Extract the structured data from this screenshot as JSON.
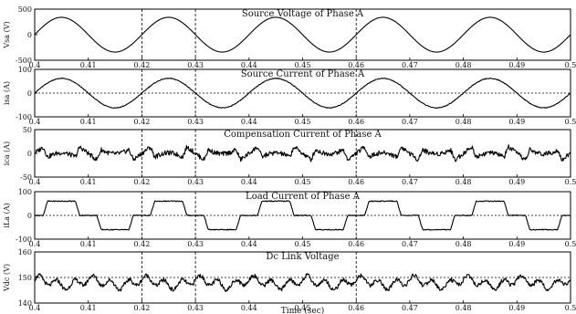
{
  "chart_data": [
    {
      "type": "line",
      "title": "Source Voltage of Phase A",
      "ylabel": "Vsa (V)",
      "xlim": [
        0.4,
        0.5
      ],
      "ylim": [
        -500,
        500
      ],
      "yticks": [
        "500",
        "0",
        "-500"
      ],
      "xticks": [
        "0.4",
        "0.41",
        "0.42",
        "0.43",
        "0.44",
        "0.45",
        "0.46",
        "0.47",
        "0.48",
        "0.49",
        "0.5"
      ],
      "reference_lines_x": [
        0.42,
        0.43,
        0.46
      ],
      "series": [
        {
          "waveform": "sine",
          "amplitude": 340,
          "frequency_hz": 50,
          "phase_deg": 0
        }
      ]
    },
    {
      "type": "line",
      "title": "Source Current of Phase A",
      "ylabel": "isa (A)",
      "xlim": [
        0.4,
        0.5
      ],
      "ylim": [
        -100,
        100
      ],
      "yticks": [
        "100",
        "0",
        "-100"
      ],
      "xticks": [
        "0.4",
        "0.41",
        "0.42",
        "0.43",
        "0.44",
        "0.45",
        "0.46",
        "0.47",
        "0.48",
        "0.49",
        "0.5"
      ],
      "reference_lines_x": [
        0.42,
        0.43,
        0.46
      ],
      "reference_line_y": 0,
      "series": [
        {
          "waveform": "sine",
          "amplitude": 62,
          "frequency_hz": 50,
          "phase_deg": 0
        }
      ]
    },
    {
      "type": "line",
      "title": "Compensation Current of Phase A",
      "ylabel": "ica (A)",
      "xlim": [
        0.4,
        0.5
      ],
      "ylim": [
        -50,
        50
      ],
      "yticks": [
        "50",
        "0",
        "-50"
      ],
      "xticks": [
        "0.4",
        "0.41",
        "0.42",
        "0.43",
        "0.44",
        "0.45",
        "0.46",
        "0.47",
        "0.48",
        "0.49",
        "0.5"
      ],
      "reference_lines_x": [
        0.42,
        0.43,
        0.46
      ],
      "series": [
        {
          "waveform": "switching ripple with spikes at load-current transitions",
          "amplitude": 30,
          "frequency_hz": 50
        }
      ]
    },
    {
      "type": "line",
      "title": "Load Current of Phase A",
      "ylabel": "iLa (A)",
      "xlim": [
        0.4,
        0.5
      ],
      "ylim": [
        -100,
        100
      ],
      "yticks": [
        "100",
        "0",
        "-100"
      ],
      "xticks": [
        "0.4",
        "0.41",
        "0.42",
        "0.43",
        "0.44",
        "0.45",
        "0.46",
        "0.47",
        "0.48",
        "0.49",
        "0.5"
      ],
      "reference_lines_x": [
        0.42,
        0.43,
        0.46
      ],
      "reference_line_y": 0,
      "series": [
        {
          "waveform": "quasi-square",
          "amplitude": 60,
          "frequency_hz": 50
        }
      ]
    },
    {
      "type": "line",
      "title": "Dc Link Voltage",
      "ylabel": "Vdc (V)",
      "xlabel": "Time (sec)",
      "xlim": [
        0.4,
        0.5
      ],
      "ylim": [
        140,
        160
      ],
      "yticks": [
        "160",
        "150",
        "140"
      ],
      "xticks": [
        "0.4",
        "0.41",
        "0.42",
        "0.43",
        "0.44",
        "0.45",
        "0.46",
        "0.47",
        "0.48",
        "0.49",
        "0.5"
      ],
      "reference_lines_x": [
        0.42,
        0.43,
        0.46
      ],
      "reference_line_y": 150,
      "series": [
        {
          "waveform": "ripple around mean",
          "mean": 148,
          "amplitude": 3
        }
      ]
    }
  ]
}
